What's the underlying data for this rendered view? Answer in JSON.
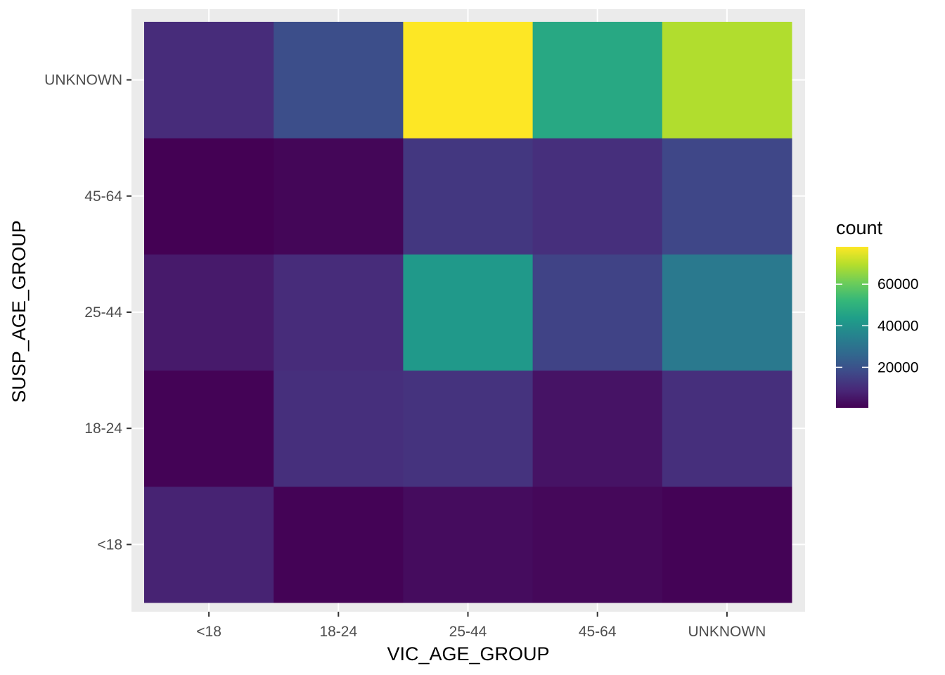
{
  "chart_data": {
    "type": "heatmap",
    "title": "",
    "xlabel": "VIC_AGE_GROUP",
    "ylabel": "SUSP_AGE_GROUP",
    "x_categories": [
      "<18",
      "18-24",
      "25-44",
      "45-64",
      "UNKNOWN"
    ],
    "y_categories": [
      "<18",
      "18-24",
      "25-44",
      "45-64",
      "UNKNOWN"
    ],
    "values": [
      [
        8000,
        1000,
        3000,
        2000,
        1000
      ],
      [
        1000,
        11000,
        12000,
        4500,
        11000
      ],
      [
        6000,
        10000,
        42000,
        16000,
        32000
      ],
      [
        500,
        1500,
        13000,
        11000,
        17000
      ],
      [
        10000,
        19000,
        78000,
        47000,
        69000
      ]
    ],
    "legend": {
      "title": "count",
      "ticks": [
        20000,
        40000,
        60000
      ],
      "tick_labels": [
        "20000",
        "40000",
        "60000"
      ],
      "min": 500,
      "max": 78000,
      "position": "right"
    },
    "colors": {
      "panel_background": "#EBEBEB",
      "gridline": "#FFFFFF",
      "tick_mark": "#333333",
      "palette": [
        "#440154",
        "#482878",
        "#3E4A89",
        "#31688E",
        "#26828E",
        "#1F9E89",
        "#35B779",
        "#6DCD59",
        "#B4DE2C",
        "#FDE725"
      ]
    },
    "grid": true
  }
}
